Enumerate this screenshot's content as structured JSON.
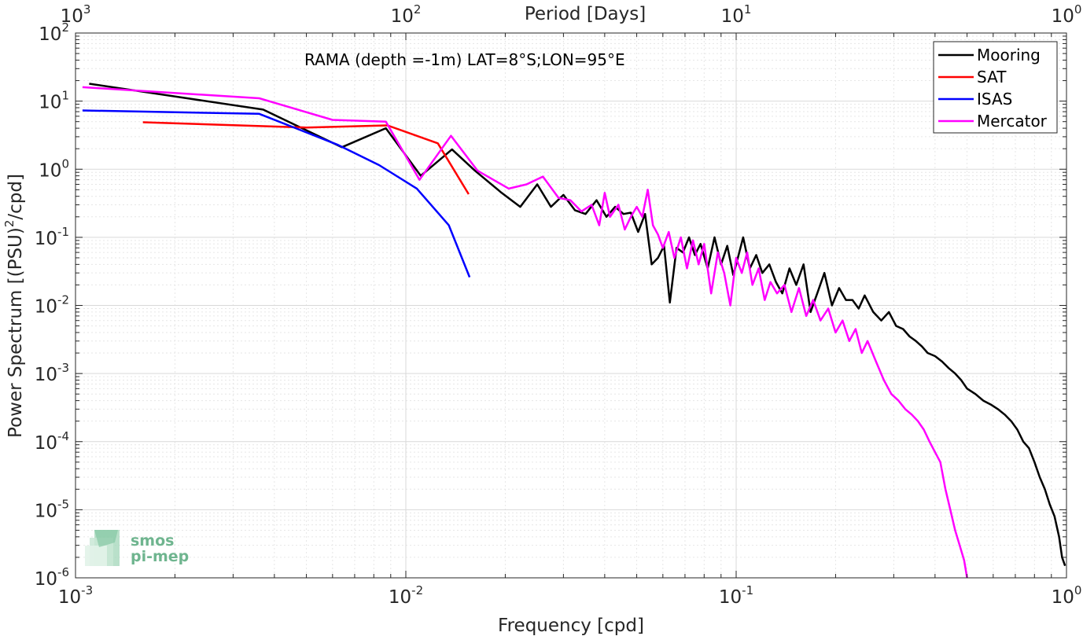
{
  "chart_data": {
    "type": "line",
    "title": "RAMA (depth =-1m) LAT=8°S;LON=95°E",
    "xlabel": "Frequency [cpd]",
    "ylabel_parts": [
      "Power Spectrum [(PSU)",
      "2",
      "/cpd]"
    ],
    "top_xlabel": "Period [Days]",
    "x_scale": "log",
    "y_scale": "log",
    "xlim": [
      0.001,
      1
    ],
    "ylim": [
      1e-06,
      100
    ],
    "grid": true,
    "legend_position": "top-right",
    "x_ticks": [
      {
        "base": "10",
        "exp": "-3",
        "value": 0.001
      },
      {
        "base": "10",
        "exp": "-2",
        "value": 0.01
      },
      {
        "base": "10",
        "exp": "-1",
        "value": 0.1
      },
      {
        "base": "10",
        "exp": "0",
        "value": 1
      }
    ],
    "y_ticks": [
      {
        "base": "10",
        "exp": "2",
        "value": 100
      },
      {
        "base": "10",
        "exp": "1",
        "value": 10
      },
      {
        "base": "10",
        "exp": "0",
        "value": 1
      },
      {
        "base": "10",
        "exp": "-1",
        "value": 0.1
      },
      {
        "base": "10",
        "exp": "-2",
        "value": 0.01
      },
      {
        "base": "10",
        "exp": "-3",
        "value": 0.001
      },
      {
        "base": "10",
        "exp": "-4",
        "value": 0.0001
      },
      {
        "base": "10",
        "exp": "-5",
        "value": 1e-05
      },
      {
        "base": "10",
        "exp": "-6",
        "value": 1e-06
      }
    ],
    "top_ticks": [
      {
        "base": "10",
        "exp": "3",
        "value": 0.001
      },
      {
        "base": "10",
        "exp": "2",
        "value": 0.01
      },
      {
        "base": "10",
        "exp": "1",
        "value": 0.1
      },
      {
        "base": "10",
        "exp": "0",
        "value": 1
      }
    ],
    "series": [
      {
        "name": "Mooring",
        "color": "#000000",
        "x": [
          0.0011,
          0.0037,
          0.0064,
          0.0087,
          0.0111,
          0.0138,
          0.0162,
          0.0195,
          0.0222,
          0.025,
          0.0275,
          0.03,
          0.0325,
          0.035,
          0.0378,
          0.0405,
          0.043,
          0.0456,
          0.048,
          0.0505,
          0.053,
          0.0555,
          0.058,
          0.0605,
          0.063,
          0.066,
          0.069,
          0.072,
          0.075,
          0.078,
          0.082,
          0.086,
          0.09,
          0.094,
          0.098,
          0.1,
          0.105,
          0.11,
          0.115,
          0.12,
          0.126,
          0.132,
          0.138,
          0.145,
          0.152,
          0.16,
          0.168,
          0.176,
          0.185,
          0.195,
          0.205,
          0.215,
          0.225,
          0.235,
          0.245,
          0.26,
          0.275,
          0.29,
          0.305,
          0.32,
          0.335,
          0.35,
          0.365,
          0.38,
          0.4,
          0.42,
          0.44,
          0.46,
          0.48,
          0.5,
          0.53,
          0.56,
          0.59,
          0.62,
          0.65,
          0.68,
          0.71,
          0.74,
          0.77,
          0.8,
          0.83,
          0.86,
          0.89,
          0.92,
          0.95,
          0.97,
          0.99
        ],
        "values": [
          18,
          7.5,
          2.1,
          4.0,
          0.8,
          1.95,
          0.95,
          0.45,
          0.28,
          0.6,
          0.28,
          0.42,
          0.25,
          0.22,
          0.35,
          0.2,
          0.28,
          0.22,
          0.23,
          0.12,
          0.22,
          0.04,
          0.05,
          0.075,
          0.011,
          0.07,
          0.06,
          0.1,
          0.055,
          0.08,
          0.035,
          0.1,
          0.04,
          0.075,
          0.028,
          0.04,
          0.1,
          0.035,
          0.055,
          0.03,
          0.04,
          0.022,
          0.015,
          0.035,
          0.02,
          0.04,
          0.008,
          0.015,
          0.03,
          0.01,
          0.018,
          0.012,
          0.012,
          0.009,
          0.014,
          0.008,
          0.006,
          0.008,
          0.005,
          0.0045,
          0.0035,
          0.003,
          0.0025,
          0.002,
          0.0018,
          0.0015,
          0.0012,
          0.001,
          0.0008,
          0.0006,
          0.0005,
          0.0004,
          0.00035,
          0.0003,
          0.00025,
          0.0002,
          0.00015,
          0.0001,
          8e-05,
          5e-05,
          3e-05,
          2e-05,
          1.2e-05,
          8e-06,
          4e-06,
          2e-06,
          1.5e-06
        ]
      },
      {
        "name": "SAT",
        "color": "#ff0000",
        "x": [
          0.0016,
          0.005,
          0.0088,
          0.0125,
          0.0155
        ],
        "values": [
          4.9,
          4.1,
          4.4,
          2.4,
          0.43
        ]
      },
      {
        "name": "ISAS",
        "color": "#0000ff",
        "x": [
          0.00105,
          0.0036,
          0.0062,
          0.0083,
          0.0108,
          0.0135,
          0.0156
        ],
        "values": [
          7.3,
          6.5,
          2.3,
          1.15,
          0.52,
          0.15,
          0.026
        ]
      },
      {
        "name": "Mercator",
        "color": "#ff00ff",
        "x": [
          0.00105,
          0.0036,
          0.006,
          0.0087,
          0.011,
          0.0137,
          0.0165,
          0.0205,
          0.0232,
          0.026,
          0.029,
          0.0315,
          0.034,
          0.0365,
          0.0385,
          0.04,
          0.0415,
          0.044,
          0.046,
          0.048,
          0.05,
          0.052,
          0.054,
          0.056,
          0.058,
          0.06,
          0.0625,
          0.065,
          0.068,
          0.071,
          0.074,
          0.077,
          0.08,
          0.084,
          0.088,
          0.092,
          0.096,
          0.1,
          0.104,
          0.108,
          0.112,
          0.117,
          0.122,
          0.127,
          0.133,
          0.14,
          0.147,
          0.155,
          0.163,
          0.171,
          0.18,
          0.19,
          0.2,
          0.21,
          0.22,
          0.23,
          0.24,
          0.25,
          0.265,
          0.28,
          0.295,
          0.31,
          0.325,
          0.34,
          0.355,
          0.37,
          0.385,
          0.4,
          0.415,
          0.43,
          0.445,
          0.46,
          0.475,
          0.49,
          0.5
        ],
        "values": [
          16,
          11,
          5.3,
          5.0,
          0.7,
          3.1,
          0.95,
          0.52,
          0.6,
          0.78,
          0.38,
          0.35,
          0.24,
          0.3,
          0.15,
          0.45,
          0.2,
          0.3,
          0.13,
          0.2,
          0.28,
          0.2,
          0.5,
          0.15,
          0.11,
          0.07,
          0.12,
          0.05,
          0.1,
          0.035,
          0.09,
          0.04,
          0.08,
          0.015,
          0.06,
          0.03,
          0.01,
          0.05,
          0.03,
          0.06,
          0.02,
          0.035,
          0.012,
          0.022,
          0.015,
          0.02,
          0.008,
          0.018,
          0.007,
          0.012,
          0.006,
          0.009,
          0.004,
          0.006,
          0.003,
          0.0045,
          0.002,
          0.003,
          0.0015,
          0.0008,
          0.0005,
          0.0004,
          0.0003,
          0.00025,
          0.0002,
          0.00015,
          0.0001,
          7e-05,
          5e-05,
          2e-05,
          1e-05,
          5e-06,
          3e-06,
          1.8e-06,
          1e-06
        ]
      }
    ]
  },
  "logo": {
    "line1": "smos",
    "line2": "pi-mep",
    "color": "#6fb58f"
  }
}
